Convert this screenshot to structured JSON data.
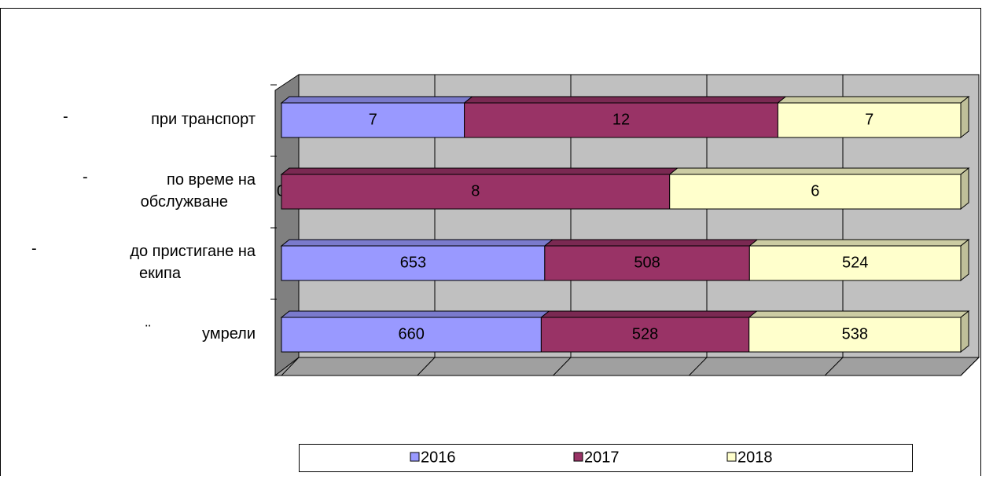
{
  "chart_data": {
    "type": "stacked_bar_100_horizontal",
    "categories": [
      "при транспорт",
      "по време на\nобслужване",
      "до пристигане на\nекипа",
      "умрели"
    ],
    "category_markers": [
      "-",
      "-",
      "-",
      "¨"
    ],
    "series": [
      {
        "name": "2016",
        "color": "#9999ff",
        "values": [
          7,
          0,
          653,
          660
        ]
      },
      {
        "name": "2017",
        "color": "#993366",
        "values": [
          12,
          8,
          508,
          528
        ]
      },
      {
        "name": "2018",
        "color": "#ffffcc",
        "values": [
          7,
          6,
          524,
          538
        ]
      }
    ],
    "xlim": [
      0,
      100
    ],
    "xticks": [
      0,
      20,
      40,
      60,
      80,
      100
    ],
    "grid": true,
    "legend": "bottom"
  }
}
